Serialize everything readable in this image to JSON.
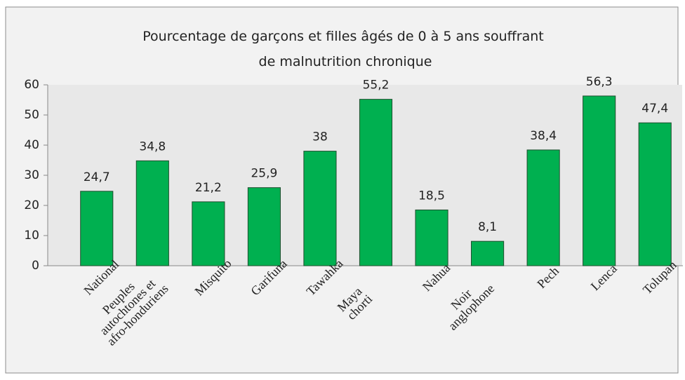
{
  "chart_data": {
    "type": "bar",
    "title": "Pourcentage de garçons et filles âgés de 0 à 5 ans souffrant de malnutrition chronique",
    "categories": [
      "National",
      "Peuples autochtones et afro-honduriens",
      "Misquito",
      "Garifuna",
      "Tawahka",
      "Maya chorti",
      "Nahua",
      "Noir anglophone",
      "Pech",
      "Lenca",
      "Tolupan"
    ],
    "values": [
      24.7,
      34.8,
      21.2,
      25.9,
      38,
      55.2,
      18.5,
      8.1,
      38.4,
      56.3,
      47.4
    ],
    "value_labels": [
      "24,7",
      "34,8",
      "21,2",
      "25,9",
      "38",
      "55,2",
      "18,5",
      "8,1",
      "38,4",
      "56,3",
      "47,4"
    ],
    "color": "#00b050",
    "ylim": [
      0,
      60
    ],
    "yticks": [
      0,
      10,
      20,
      30,
      40,
      50,
      60
    ],
    "grid": false
  }
}
